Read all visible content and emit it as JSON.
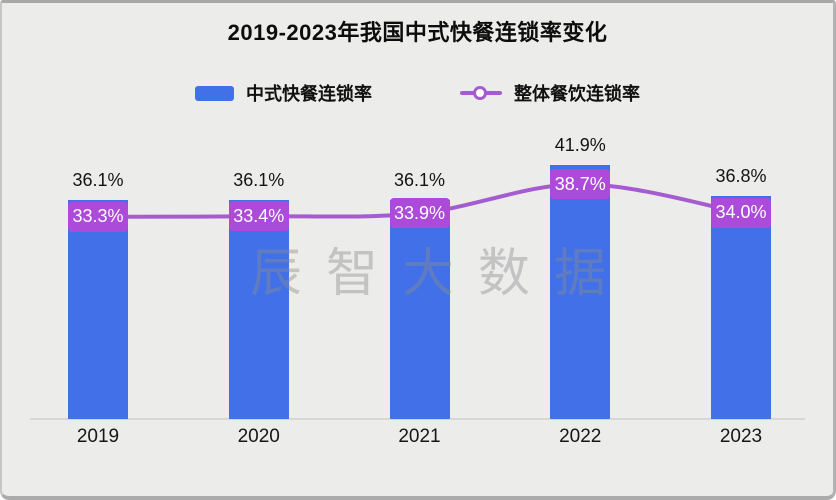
{
  "title": "2019-2023年我国中式快餐连锁率变化",
  "watermark": "辰智大数据",
  "colors": {
    "background": "#ECECEB",
    "bar": "#4170E8",
    "line": "#A55CD0",
    "point_label_bg": "#AC4BD9",
    "axis": "#D7D7D6"
  },
  "chart_data": {
    "type": "bar",
    "subtype": "bar+line combo",
    "title": "2019-2023年我国中式快餐连锁率变化",
    "categories": [
      "2019",
      "2020",
      "2021",
      "2022",
      "2023"
    ],
    "series": [
      {
        "name": "中式快餐连锁率",
        "type": "bar",
        "values": [
          36.1,
          36.1,
          36.1,
          41.9,
          36.8
        ],
        "labels": [
          "36.1%",
          "36.1%",
          "36.1%",
          "41.9%",
          "36.8%"
        ],
        "color": "#4170E8"
      },
      {
        "name": "整体餐饮连锁率",
        "type": "line",
        "values": [
          33.3,
          33.4,
          33.9,
          38.7,
          34.0
        ],
        "labels": [
          "33.3%",
          "33.4%",
          "33.9%",
          "38.7%",
          "34.0%"
        ],
        "color": "#A55CD0",
        "label_bg": "#AC4BD9"
      }
    ],
    "xlabel": "",
    "ylabel": "",
    "ylim": [
      0,
      45
    ],
    "grid": false,
    "legend_position": "top",
    "value_labels_visible": true
  }
}
